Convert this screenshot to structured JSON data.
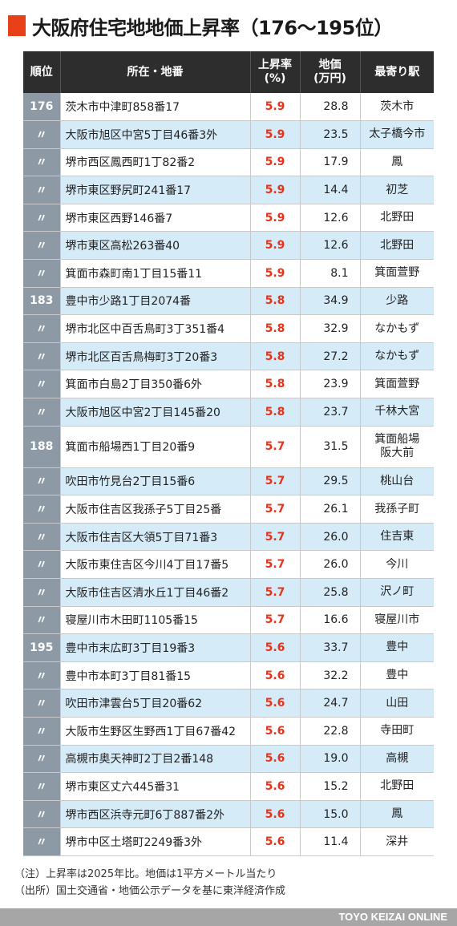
{
  "title": "大阪府住宅地地価上昇率（176〜195位）",
  "columns": {
    "rank": "順位",
    "address": "所在・地番",
    "rate_l1": "上昇率",
    "rate_l2": "(%)",
    "price_l1": "地価",
    "price_l2": "(万円)",
    "station": "最寄り駅"
  },
  "rows": [
    {
      "rank": "176",
      "address": "茨木市中津町858番17",
      "rate": "5.9",
      "price": "28.8",
      "station": "茨木市"
    },
    {
      "rank": "〃",
      "address": "大阪市旭区中宮5丁目46番3外",
      "rate": "5.9",
      "price": "23.5",
      "station": "太子橋今市"
    },
    {
      "rank": "〃",
      "address": "堺市西区鳳西町1丁82番2",
      "rate": "5.9",
      "price": "17.9",
      "station": "鳳"
    },
    {
      "rank": "〃",
      "address": "堺市東区野尻町241番17",
      "rate": "5.9",
      "price": "14.4",
      "station": "初芝"
    },
    {
      "rank": "〃",
      "address": "堺市東区西野146番7",
      "rate": "5.9",
      "price": "12.6",
      "station": "北野田"
    },
    {
      "rank": "〃",
      "address": "堺市東区高松263番40",
      "rate": "5.9",
      "price": "12.6",
      "station": "北野田"
    },
    {
      "rank": "〃",
      "address": "箕面市森町南1丁目15番11",
      "rate": "5.9",
      "price": "8.1",
      "station": "箕面萱野"
    },
    {
      "rank": "183",
      "address": "豊中市少路1丁目2074番",
      "rate": "5.8",
      "price": "34.9",
      "station": "少路"
    },
    {
      "rank": "〃",
      "address": "堺市北区中百舌鳥町3丁351番4",
      "rate": "5.8",
      "price": "32.9",
      "station": "なかもず"
    },
    {
      "rank": "〃",
      "address": "堺市北区百舌鳥梅町3丁20番3",
      "rate": "5.8",
      "price": "27.2",
      "station": "なかもず"
    },
    {
      "rank": "〃",
      "address": "箕面市白島2丁目350番6外",
      "rate": "5.8",
      "price": "23.9",
      "station": "箕面萱野"
    },
    {
      "rank": "〃",
      "address": "大阪市旭区中宮2丁目145番20",
      "rate": "5.8",
      "price": "23.7",
      "station": "千林大宮"
    },
    {
      "rank": "188",
      "address": "箕面市船場西1丁目20番9",
      "rate": "5.7",
      "price": "31.5",
      "station": "箕面船場阪大前",
      "station_l1": "箕面船場",
      "station_l2": "阪大前"
    },
    {
      "rank": "〃",
      "address": "吹田市竹見台2丁目15番6",
      "rate": "5.7",
      "price": "29.5",
      "station": "桃山台"
    },
    {
      "rank": "〃",
      "address": "大阪市住吉区我孫子5丁目25番",
      "rate": "5.7",
      "price": "26.1",
      "station": "我孫子町"
    },
    {
      "rank": "〃",
      "address": "大阪市住吉区大領5丁目71番3",
      "rate": "5.7",
      "price": "26.0",
      "station": "住吉東"
    },
    {
      "rank": "〃",
      "address": "大阪市東住吉区今川4丁目17番5",
      "rate": "5.7",
      "price": "26.0",
      "station": "今川"
    },
    {
      "rank": "〃",
      "address": "大阪市住吉区清水丘1丁目46番2",
      "rate": "5.7",
      "price": "25.8",
      "station": "沢ノ町"
    },
    {
      "rank": "〃",
      "address": "寝屋川市木田町1105番15",
      "rate": "5.7",
      "price": "16.6",
      "station": "寝屋川市"
    },
    {
      "rank": "195",
      "address": "豊中市末広町3丁目19番3",
      "rate": "5.6",
      "price": "33.7",
      "station": "豊中"
    },
    {
      "rank": "〃",
      "address": "豊中市本町3丁目81番15",
      "rate": "5.6",
      "price": "32.2",
      "station": "豊中"
    },
    {
      "rank": "〃",
      "address": "吹田市津雲台5丁目20番62",
      "rate": "5.6",
      "price": "24.7",
      "station": "山田"
    },
    {
      "rank": "〃",
      "address": "大阪市生野区生野西1丁目67番42",
      "rate": "5.6",
      "price": "22.8",
      "station": "寺田町"
    },
    {
      "rank": "〃",
      "address": "高槻市奥天神町2丁目2番148",
      "rate": "5.6",
      "price": "19.0",
      "station": "高槻"
    },
    {
      "rank": "〃",
      "address": "堺市東区丈六445番31",
      "rate": "5.6",
      "price": "15.2",
      "station": "北野田"
    },
    {
      "rank": "〃",
      "address": "堺市西区浜寺元町6丁887番2外",
      "rate": "5.6",
      "price": "15.0",
      "station": "鳳"
    },
    {
      "rank": "〃",
      "address": "堺市中区土塔町2249番3外",
      "rate": "5.6",
      "price": "11.4",
      "station": "深井"
    }
  ],
  "notes": [
    "（注）上昇率は2025年比。地価は1平方メートル当たり",
    "（出所）国土交通省・地価公示データを基に東洋経済作成"
  ],
  "footer": "TOYO KEIZAI ONLINE",
  "colors": {
    "accent": "#e8411a",
    "header_bg": "#2d2d2d",
    "rank_bg": "#8d9aa6",
    "stripe": "#d6ebf8",
    "rate_text": "#e8331a",
    "footer_bg": "#a6a6a6"
  }
}
